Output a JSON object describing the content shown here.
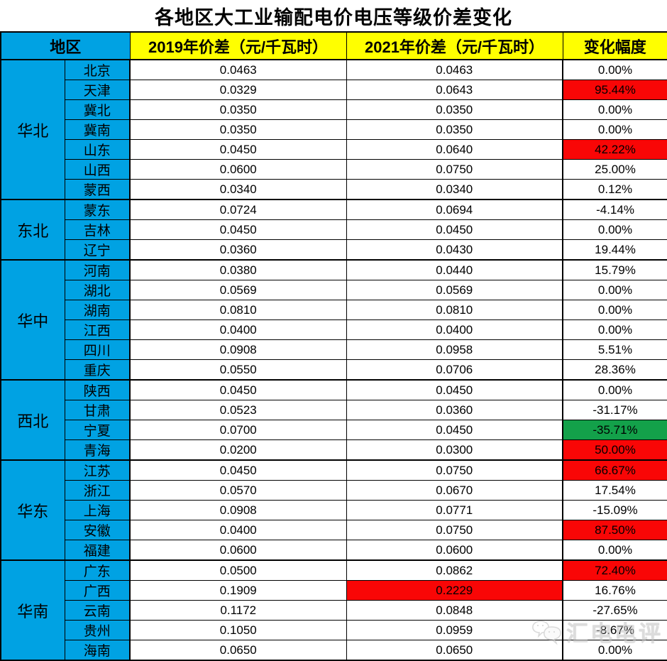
{
  "chart_data": {
    "type": "table",
    "title": "各地区大工业输配电价电压等级价差变化",
    "headers": {
      "region": "地区",
      "y2019": "2019年价差（元/千瓦时）",
      "y2021": "2021年价差（元/千瓦时）",
      "change": "变化幅度"
    },
    "unit": "元/千瓦时",
    "groups": [
      {
        "name": "华北",
        "rows": [
          {
            "province": "北京",
            "v2019": "0.0463",
            "v2021": "0.0463",
            "change": "0.00%"
          },
          {
            "province": "天津",
            "v2019": "0.0329",
            "v2021": "0.0643",
            "change": "95.44%",
            "change_hl": "red"
          },
          {
            "province": "冀北",
            "v2019": "0.0350",
            "v2021": "0.0350",
            "change": "0.00%"
          },
          {
            "province": "冀南",
            "v2019": "0.0350",
            "v2021": "0.0350",
            "change": "0.00%"
          },
          {
            "province": "山东",
            "v2019": "0.0450",
            "v2021": "0.0640",
            "change": "42.22%",
            "change_hl": "red"
          },
          {
            "province": "山西",
            "v2019": "0.0600",
            "v2021": "0.0750",
            "change": "25.00%"
          },
          {
            "province": "蒙西",
            "v2019": "0.0340",
            "v2021": "0.0340",
            "change": "0.12%"
          }
        ]
      },
      {
        "name": "东北",
        "rows": [
          {
            "province": "蒙东",
            "v2019": "0.0724",
            "v2021": "0.0694",
            "change": "-4.14%"
          },
          {
            "province": "吉林",
            "v2019": "0.0450",
            "v2021": "0.0450",
            "change": "0.00%"
          },
          {
            "province": "辽宁",
            "v2019": "0.0360",
            "v2021": "0.0430",
            "change": "19.44%"
          }
        ]
      },
      {
        "name": "华中",
        "rows": [
          {
            "province": "河南",
            "v2019": "0.0380",
            "v2021": "0.0440",
            "change": "15.79%"
          },
          {
            "province": "湖北",
            "v2019": "0.0569",
            "v2021": "0.0569",
            "change": "0.00%"
          },
          {
            "province": "湖南",
            "v2019": "0.0810",
            "v2021": "0.0810",
            "change": "0.00%"
          },
          {
            "province": "江西",
            "v2019": "0.0400",
            "v2021": "0.0400",
            "change": "0.00%"
          },
          {
            "province": "四川",
            "v2019": "0.0908",
            "v2021": "0.0958",
            "change": "5.51%"
          },
          {
            "province": "重庆",
            "v2019": "0.0550",
            "v2021": "0.0706",
            "change": "28.36%"
          }
        ]
      },
      {
        "name": "西北",
        "rows": [
          {
            "province": "陕西",
            "v2019": "0.0450",
            "v2021": "0.0450",
            "change": "0.00%"
          },
          {
            "province": "甘肃",
            "v2019": "0.0523",
            "v2021": "0.0360",
            "change": "-31.17%"
          },
          {
            "province": "宁夏",
            "v2019": "0.0700",
            "v2021": "0.0450",
            "change": "-35.71%",
            "change_hl": "green"
          },
          {
            "province": "青海",
            "v2019": "0.0200",
            "v2021": "0.0300",
            "change": "50.00%",
            "change_hl": "red"
          }
        ]
      },
      {
        "name": "华东",
        "rows": [
          {
            "province": "江苏",
            "v2019": "0.0450",
            "v2021": "0.0750",
            "change": "66.67%",
            "change_hl": "red"
          },
          {
            "province": "浙江",
            "v2019": "0.0570",
            "v2021": "0.0670",
            "change": "17.54%"
          },
          {
            "province": "上海",
            "v2019": "0.0908",
            "v2021": "0.0771",
            "change": "-15.09%"
          },
          {
            "province": "安徽",
            "v2019": "0.0400",
            "v2021": "0.0750",
            "change": "87.50%",
            "change_hl": "red"
          },
          {
            "province": "福建",
            "v2019": "0.0600",
            "v2021": "0.0600",
            "change": "0.00%"
          }
        ]
      },
      {
        "name": "华南",
        "rows": [
          {
            "province": "广东",
            "v2019": "0.0500",
            "v2021": "0.0862",
            "change": "72.40%",
            "change_hl": "red"
          },
          {
            "province": "广西",
            "v2019": "0.1909",
            "v2021": "0.2229",
            "change": "16.76%",
            "v2021_hl": "red"
          },
          {
            "province": "云南",
            "v2019": "0.1172",
            "v2021": "0.0848",
            "change": "-27.65%"
          },
          {
            "province": "贵州",
            "v2019": "0.1050",
            "v2021": "0.0959",
            "change": "-8.67%"
          },
          {
            "province": "海南",
            "v2019": "0.0650",
            "v2021": "0.0650",
            "change": "0.00%"
          }
        ]
      }
    ]
  },
  "watermark": {
    "text": "汇电电评",
    "logo": "chat-bubbles-cloud"
  },
  "colors": {
    "header_blue": "#00A2E3",
    "header_yellow": "#FFFF00",
    "highlight_red": "#F90606",
    "highlight_green": "#13A14A",
    "border": "#000000"
  }
}
